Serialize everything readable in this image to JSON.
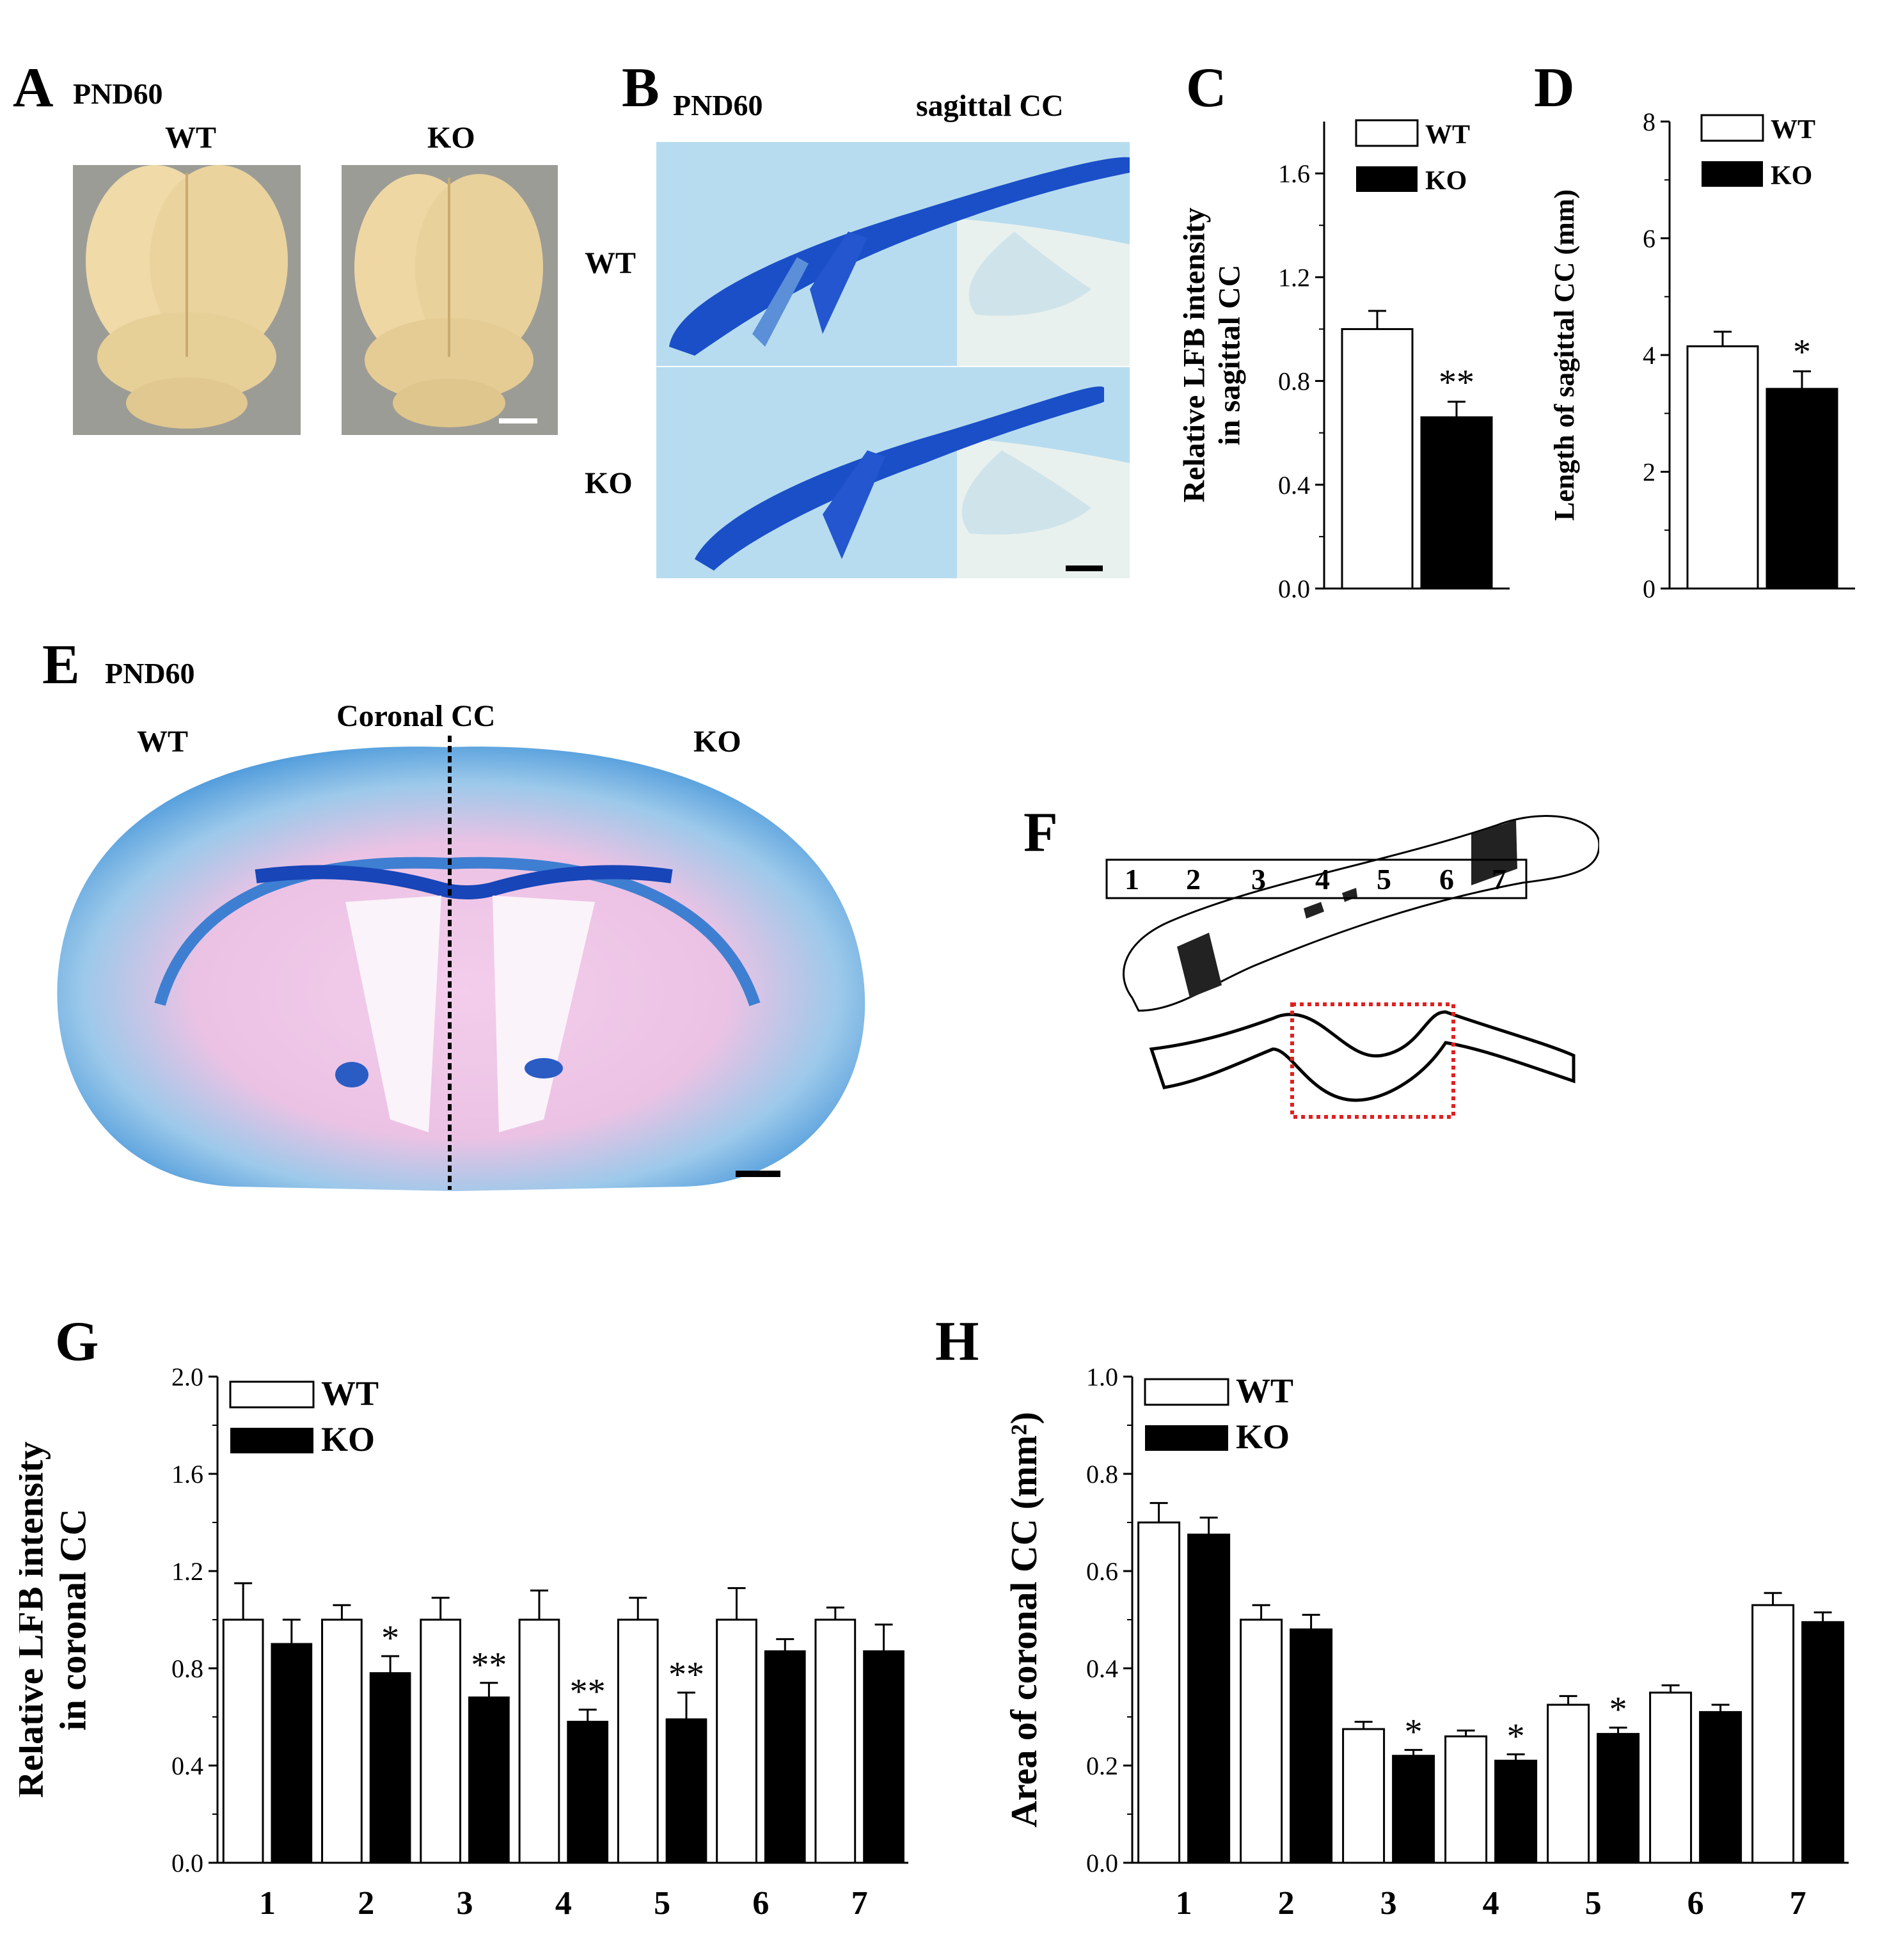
{
  "panels": {
    "A": {
      "letter": "A",
      "age": "PND60",
      "wt": "WT",
      "ko": "KO"
    },
    "B": {
      "letter": "B",
      "age": "PND60",
      "title": "sagittal CC",
      "wt": "WT",
      "ko": "KO"
    },
    "C": {
      "letter": "C"
    },
    "D": {
      "letter": "D"
    },
    "E": {
      "letter": "E",
      "age": "PND60",
      "title": "Coronal CC",
      "wt": "WT",
      "ko": "KO"
    },
    "F": {
      "letter": "F",
      "segments": [
        "1",
        "2",
        "3",
        "4",
        "5",
        "6",
        "7"
      ]
    },
    "G": {
      "letter": "G"
    },
    "H": {
      "letter": "H"
    }
  },
  "colors": {
    "lfb_blue": "#1a4fc8",
    "lfb_light": "#a9d4ec",
    "brain": "#f0d9a6",
    "pink": "#f2c4e6",
    "sig_box": "#e02020"
  },
  "chart_data": [
    {
      "id": "C",
      "type": "bar",
      "categories": [
        "WT",
        "KO"
      ],
      "values": [
        1.0,
        0.66
      ],
      "errors": [
        0.07,
        0.06
      ],
      "significance": [
        "",
        "**"
      ],
      "ylabel": "Relative LFB intensity\nin sagittal CC",
      "ylim": [
        0,
        1.8
      ],
      "yticks": [
        "0.0",
        "0.4",
        "0.8",
        "1.2",
        "1.6"
      ],
      "legend": [
        "WT",
        "KO"
      ]
    },
    {
      "id": "D",
      "type": "bar",
      "categories": [
        "WT",
        "KO"
      ],
      "values": [
        4.15,
        3.42
      ],
      "errors": [
        0.25,
        0.3
      ],
      "significance": [
        "",
        "*"
      ],
      "ylabel": "Length of sagittal CC (mm)",
      "ylim": [
        0,
        8
      ],
      "yticks": [
        "0",
        "2",
        "4",
        "6",
        "8"
      ],
      "legend": [
        "WT",
        "KO"
      ]
    },
    {
      "id": "G",
      "type": "bar",
      "categories": [
        "1",
        "2",
        "3",
        "4",
        "5",
        "6",
        "7"
      ],
      "series": [
        {
          "name": "WT",
          "values": [
            1.0,
            1.0,
            1.0,
            1.0,
            1.0,
            1.0,
            1.0
          ],
          "errors": [
            0.15,
            0.06,
            0.09,
            0.12,
            0.09,
            0.13,
            0.05
          ]
        },
        {
          "name": "KO",
          "values": [
            0.9,
            0.78,
            0.68,
            0.58,
            0.59,
            0.87,
            0.87
          ],
          "errors": [
            0.1,
            0.07,
            0.06,
            0.05,
            0.11,
            0.05,
            0.11
          ]
        }
      ],
      "significance": [
        "",
        "*",
        "**",
        "**",
        "**",
        "",
        ""
      ],
      "ylabel": "Relative LFB intensity\nin coronal CC",
      "ylim": [
        0,
        2.0
      ],
      "yticks": [
        "0.0",
        "0.4",
        "0.8",
        "1.2",
        "1.6",
        "2.0"
      ],
      "legend": [
        "WT",
        "KO"
      ]
    },
    {
      "id": "H",
      "type": "bar",
      "categories": [
        "1",
        "2",
        "3",
        "4",
        "5",
        "6",
        "7"
      ],
      "series": [
        {
          "name": "WT",
          "values": [
            0.7,
            0.5,
            0.275,
            0.26,
            0.325,
            0.35,
            0.53
          ],
          "errors": [
            0.04,
            0.03,
            0.015,
            0.012,
            0.018,
            0.015,
            0.025
          ]
        },
        {
          "name": "KO",
          "values": [
            0.675,
            0.48,
            0.22,
            0.21,
            0.265,
            0.31,
            0.495
          ],
          "errors": [
            0.035,
            0.03,
            0.012,
            0.013,
            0.013,
            0.015,
            0.02
          ]
        }
      ],
      "significance": [
        "",
        "",
        "*",
        "*",
        "*",
        "",
        ""
      ],
      "ylabel": "Area of coronal CC (mm²)",
      "ylim": [
        0,
        1.0
      ],
      "yticks": [
        "0.0",
        "0.2",
        "0.4",
        "0.6",
        "0.8",
        "1.0"
      ],
      "legend": [
        "WT",
        "KO"
      ]
    }
  ]
}
